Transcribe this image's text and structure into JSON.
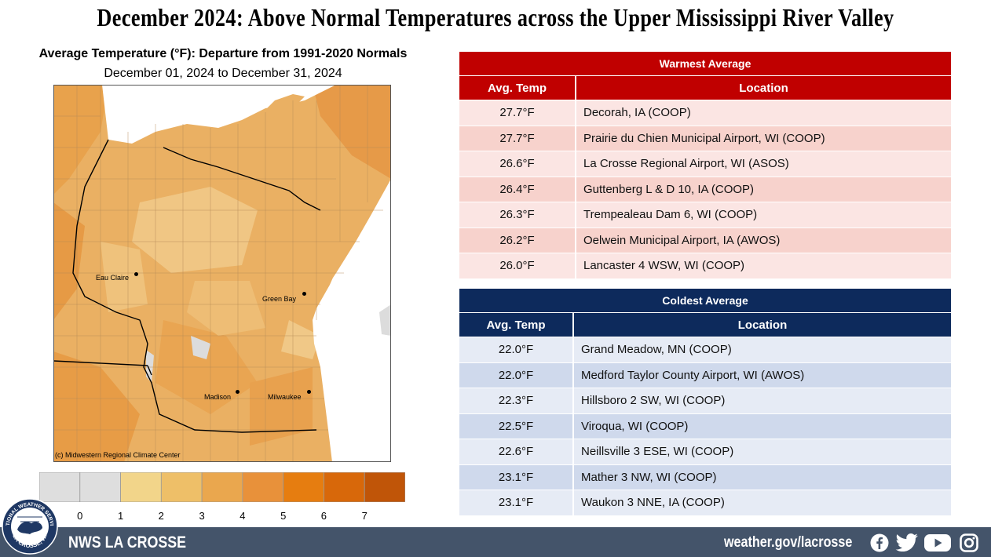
{
  "title": "December 2024:  Above Normal Temperatures across the Upper Mississippi River Valley",
  "map": {
    "title": "Average Temperature (°F): Departure from 1991-2020 Normals",
    "subtitle": "December 01, 2024 to December 31, 2024",
    "credit": "(c) Midwestern Regional Climate Center",
    "cities": [
      "Eau Claire",
      "Green Bay",
      "Madison",
      "Milwaukee"
    ]
  },
  "legend": {
    "ticks": [
      "0",
      "1",
      "2",
      "3",
      "4",
      "5",
      "6",
      "7"
    ],
    "colors": [
      "#dedede",
      "#dedede",
      "#f2d58a",
      "#eebf68",
      "#eaa74e",
      "#e8913a",
      "#e67d10",
      "#d8680a",
      "#c05508"
    ]
  },
  "chart_data": [
    {
      "type": "table",
      "title": "Warmest  Average",
      "columns": [
        "Avg. Temp",
        "Location"
      ],
      "rows": [
        [
          "27.7°F",
          "Decorah, IA (COOP)"
        ],
        [
          "27.7°F",
          "Prairie du Chien Municipal Airport, WI (COOP)"
        ],
        [
          "26.6°F",
          "La Crosse Regional Airport, WI (ASOS)"
        ],
        [
          "26.4°F",
          "Guttenberg L & D 10, IA (COOP)"
        ],
        [
          "26.3°F",
          "Trempealeau Dam 6, WI (COOP)"
        ],
        [
          "26.2°F",
          "Oelwein Municipal Airport, IA (AWOS)"
        ],
        [
          "26.0°F",
          "Lancaster 4 WSW, WI (COOP)"
        ]
      ]
    },
    {
      "type": "table",
      "title": "Coldest Average",
      "columns": [
        "Avg. Temp",
        "Location"
      ],
      "rows": [
        [
          "22.0°F",
          "Grand Meadow, MN (COOP)"
        ],
        [
          "22.0°F",
          "Medford Taylor County Airport, WI (AWOS)"
        ],
        [
          "22.3°F",
          "Hillsboro 2 SW, WI (COOP)"
        ],
        [
          "22.5°F",
          "Viroqua, WI (COOP)"
        ],
        [
          "22.6°F",
          "Neillsville 3 ESE, WI (COOP)"
        ],
        [
          "23.1°F",
          "Mather 3 NW, WI (COOP)"
        ],
        [
          "23.1°F",
          "Waukon 3 NNE, IA (COOP)"
        ]
      ]
    }
  ],
  "footer": {
    "office": "NWS LA CROSSE",
    "url": "weather.gov/lacrosse",
    "icons": [
      "facebook-icon",
      "twitter-icon",
      "youtube-icon",
      "instagram-icon"
    ],
    "background": "#44546a"
  },
  "logo": {
    "text_top": "NATIONAL WEATHER SERVICE",
    "text_bottom": "LA CROSSE, WI"
  }
}
